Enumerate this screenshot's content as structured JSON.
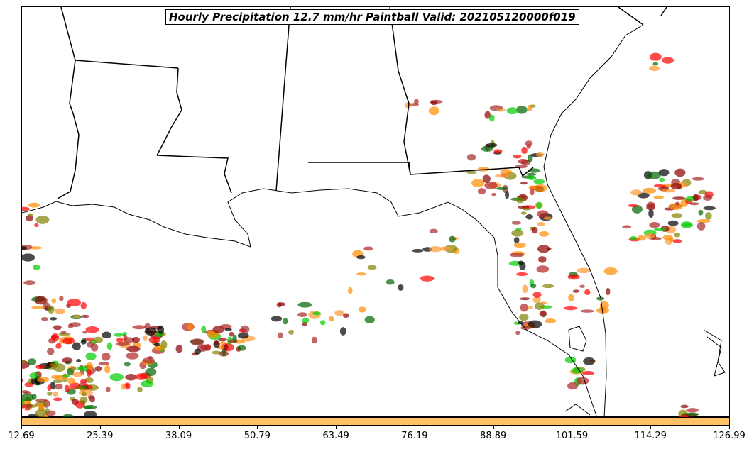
{
  "title": "Hourly Precipitation 12.7 mm/hr Paintball Valid: 202105120000f019",
  "colorbar": {
    "color": "#ffc066",
    "ticks": [
      "12.69",
      "25.39",
      "38.09",
      "50.79",
      "63.49",
      "76.19",
      "88.89",
      "101.59",
      "114.29",
      "126.99"
    ]
  },
  "member_colors": [
    "#ff0000",
    "#8b0000",
    "#00cc00",
    "#006400",
    "#808000",
    "#ff8c00",
    "#000000",
    "#b22222",
    "#ff9933",
    "#a52a2a"
  ]
}
